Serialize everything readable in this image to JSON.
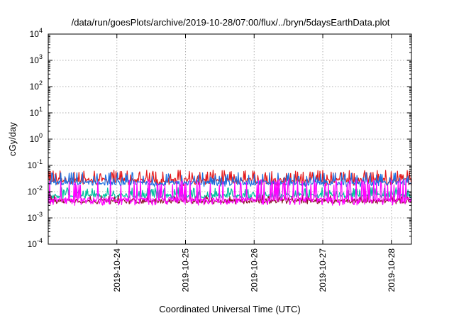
{
  "chart_data": {
    "type": "line",
    "title": "/data/run/goesPlots/archive/2019-10-28/07:00/flux/../bryn/5daysEarthData.plot",
    "xlabel": "Coordinated Universal Time (UTC)",
    "ylabel": "cGy/day",
    "yscale": "log",
    "ylim_exponent": [
      -4,
      4
    ],
    "y_ticks": [
      {
        "base": "10",
        "exp": "4",
        "e": 4
      },
      {
        "base": "10",
        "exp": "3",
        "e": 3
      },
      {
        "base": "10",
        "exp": "2",
        "e": 2
      },
      {
        "base": "10",
        "exp": "1",
        "e": 1
      },
      {
        "base": "10",
        "exp": "0",
        "e": 0
      },
      {
        "base": "10",
        "exp": "-1",
        "e": -1
      },
      {
        "base": "10",
        "exp": "-2",
        "e": -2
      },
      {
        "base": "10",
        "exp": "-3",
        "e": -3
      },
      {
        "base": "10",
        "exp": "-4",
        "e": -4
      }
    ],
    "xlim": [
      "2019-10-23 00:00",
      "2019-10-28 07:00"
    ],
    "x_ticks": [
      {
        "label": "2019-10-24",
        "t": "2019-10-24 00:00"
      },
      {
        "label": "2019-10-25",
        "t": "2019-10-25 00:00"
      },
      {
        "label": "2019-10-26",
        "t": "2019-10-26 00:00"
      },
      {
        "label": "2019-10-27",
        "t": "2019-10-27 00:00"
      },
      {
        "label": "2019-10-28",
        "t": "2019-10-28 00:00"
      }
    ],
    "grid": true,
    "series": [
      {
        "color": "#e41a1c",
        "base": 0.028,
        "spike": 0.055,
        "low": 0.02
      },
      {
        "color": "#00c0a0",
        "base": 0.007,
        "spike": 0.012,
        "low": 0.0065
      },
      {
        "color": "#1e6fe0",
        "base": 0.022,
        "spike": 0.045,
        "low": 0.018
      },
      {
        "color": "#8b1a2b",
        "base": 0.0045,
        "spike": 0.006,
        "low": 0.004
      },
      {
        "color": "#ff00ff",
        "base": 0.005,
        "spike": 0.024,
        "low": 0.0035
      }
    ]
  }
}
